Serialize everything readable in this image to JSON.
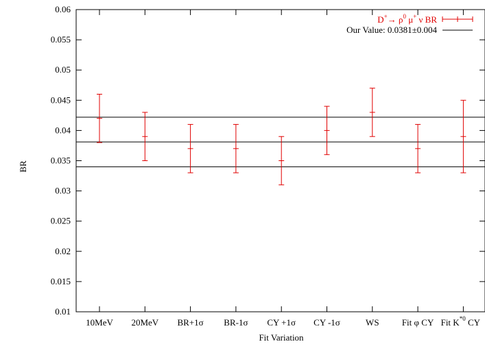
{
  "chart_data": {
    "type": "scatter",
    "xlabel": "Fit Variation",
    "ylabel": "BR",
    "categories": [
      "10MeV",
      "20MeV",
      "BR+1σ",
      "BR-1σ",
      "CY +1σ",
      "CY -1σ",
      "WS",
      "Fit φ CY",
      "Fit K*0 CY"
    ],
    "ylim": [
      0.01,
      0.06
    ],
    "yticks": [
      "0.01",
      "0.015",
      "0.02",
      "0.025",
      "0.03",
      "0.035",
      "0.04",
      "0.045",
      "0.05",
      "0.055",
      "0.06"
    ],
    "series": [
      {
        "name": "D+→ ρ0 μ+ ν BR",
        "color": "#e00000",
        "values": [
          0.042,
          0.039,
          0.037,
          0.037,
          0.035,
          0.04,
          0.043,
          0.037,
          0.039
        ],
        "err_low": [
          0.038,
          0.035,
          0.033,
          0.033,
          0.031,
          0.036,
          0.039,
          0.033,
          0.033
        ],
        "err_high": [
          0.046,
          0.043,
          0.041,
          0.041,
          0.039,
          0.044,
          0.047,
          0.041,
          0.045
        ]
      }
    ],
    "reference": {
      "name": "Our Value: 0.0381±0.004",
      "color": "#000000",
      "value": 0.0381,
      "band_low": 0.034,
      "band_high": 0.0422
    },
    "legend_position": "top-right",
    "grid": false
  }
}
